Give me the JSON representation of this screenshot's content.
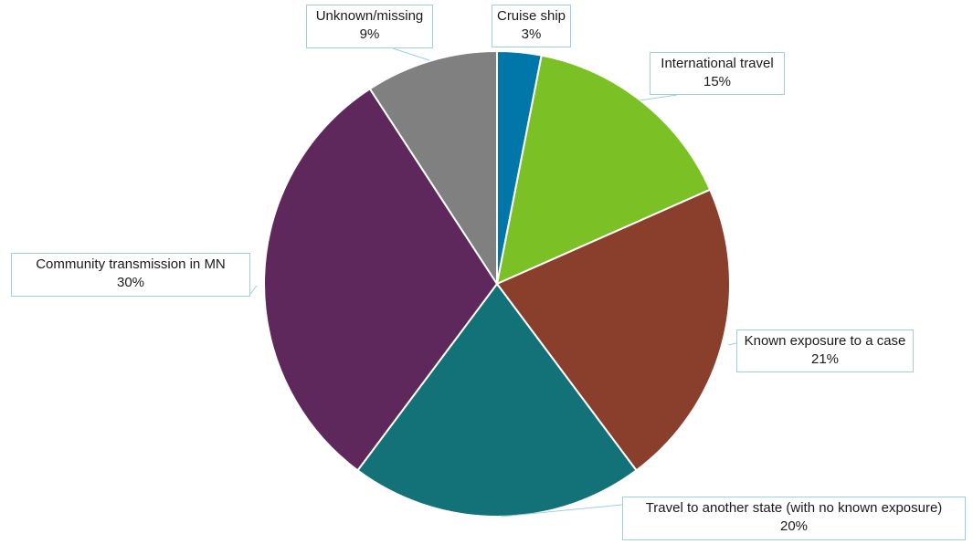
{
  "chart_data": {
    "type": "pie",
    "title": "",
    "slices": [
      {
        "label": "Cruise ship",
        "value": 3,
        "value_label": "3%",
        "color": "#0077a8"
      },
      {
        "label": "International travel",
        "value": 15,
        "value_label": "15%",
        "color": "#7bc024"
      },
      {
        "label": "Known exposure to a case",
        "value": 21,
        "value_label": "21%",
        "color": "#8a3e2c"
      },
      {
        "label": "Travel to another state (with no known exposure)",
        "value": 20,
        "value_label": "20%",
        "color": "#137278"
      },
      {
        "label": "Community transmission in MN",
        "value": 30,
        "value_label": "30%",
        "color": "#5e285c"
      },
      {
        "label": "Unknown/missing",
        "value": 9,
        "value_label": "9%",
        "color": "#808080"
      }
    ],
    "start_angle_deg": 0,
    "direction": "clockwise",
    "legend": "none",
    "label_style": "callouts"
  }
}
